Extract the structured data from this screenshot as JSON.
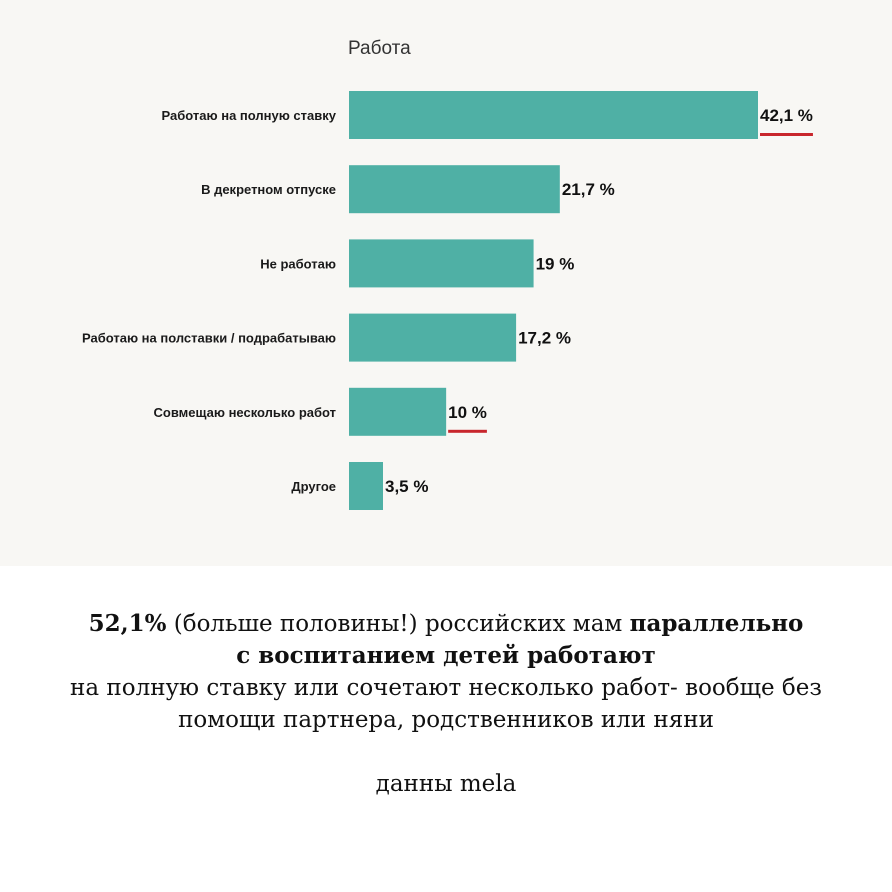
{
  "chart_data": {
    "type": "bar",
    "orientation": "horizontal",
    "title": "Работа",
    "categories": [
      "Работаю на полную ставку",
      "В декретном отпуске",
      "Не работаю",
      "Работаю на полставки / подрабатываю",
      "Совмещаю несколько работ",
      "Другое"
    ],
    "values": [
      42.1,
      21.7,
      19,
      17.2,
      10,
      3.5
    ],
    "value_labels": [
      "42,1 %",
      "21,7 %",
      "19 %",
      "17,2 %",
      "10 %",
      "3,5 %"
    ],
    "underlined": [
      true,
      false,
      false,
      false,
      true,
      false
    ],
    "xlim": [
      0,
      42.1
    ],
    "grid": false,
    "legend": "none",
    "bar_color": "#4fb0a5",
    "underline_color": "#c8262c"
  },
  "caption": {
    "line1_bold_a": "52,1%",
    "line1_normal": " (больше половины!) российских мам ",
    "line1_bold_b": "параллельно",
    "line2_bold": "с воспитанием детей работают",
    "line3": "на полную ставку или сочетают несколько работ- вообще без",
    "line4": "помощи партнера, родственников или няни",
    "source": "данны mela"
  }
}
